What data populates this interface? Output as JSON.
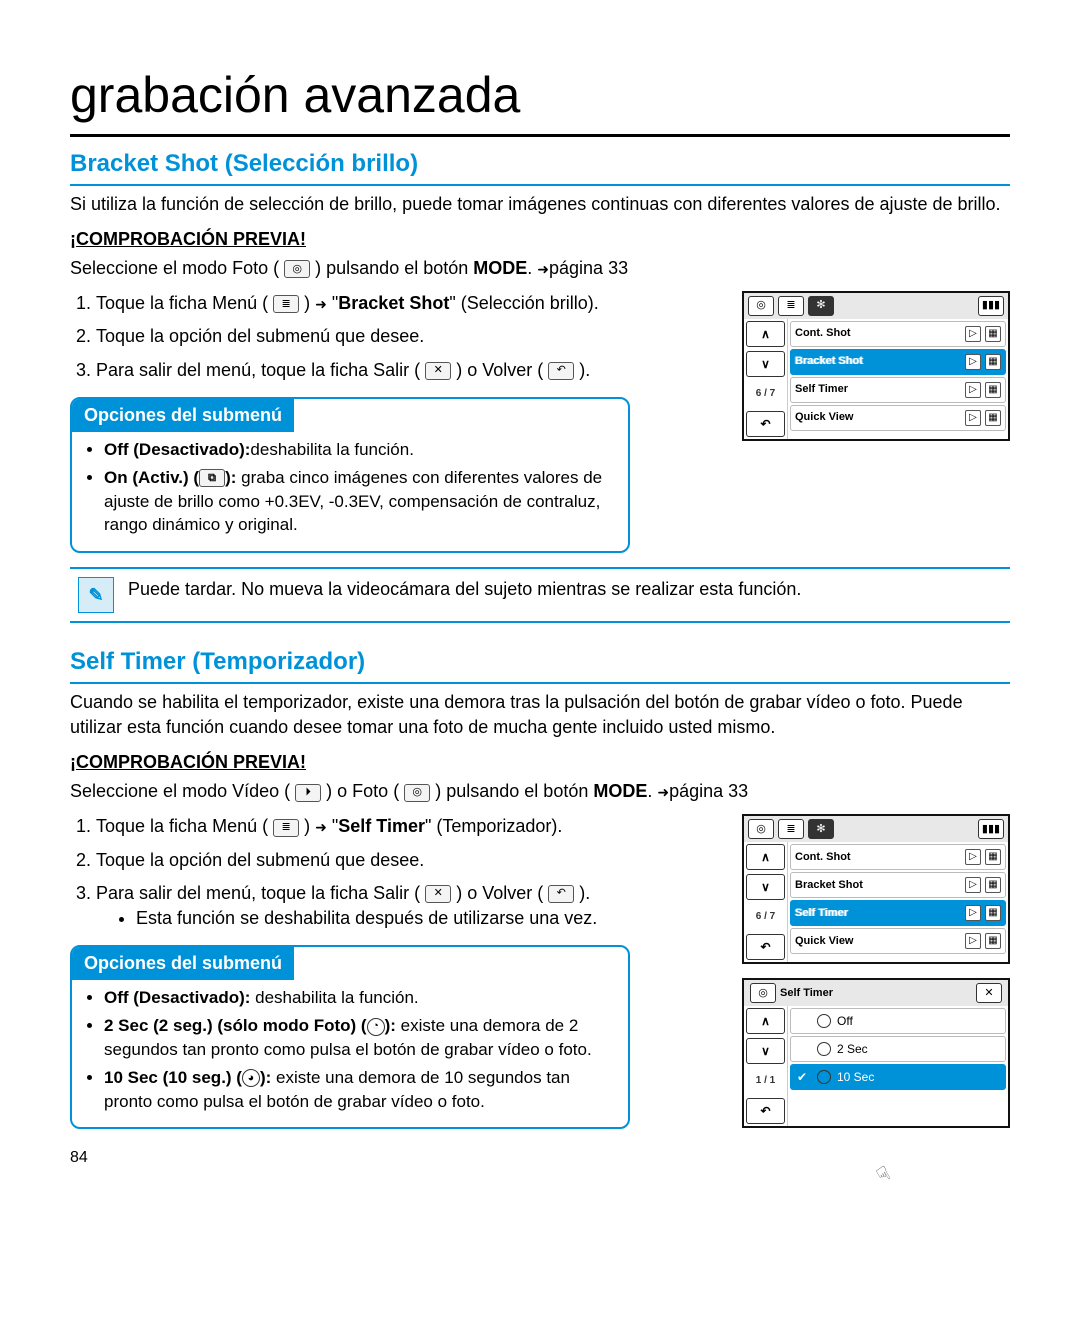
{
  "page": {
    "title": "grabación avanzada",
    "number": "84"
  },
  "section1": {
    "title": "Bracket Shot (Selección brillo)",
    "intro": "Si utiliza la función de selección de brillo, puede tomar imágenes continuas con diferentes valores de ajuste de brillo.",
    "precheck_label": "¡COMPROBACIÓN PREVIA!",
    "precheck_text_pre": "Seleccione el modo Foto (",
    "precheck_text_post": ") pulsando el botón ",
    "precheck_mode": "MODE",
    "precheck_page": "página 33",
    "step1_a": "Toque la ficha Menú (",
    "step1_b": ") ",
    "step1_c": "\"",
    "step1_bold": "Bracket Shot",
    "step1_d": "\" (Selección brillo).",
    "step2": "Toque la opción del submenú que desee.",
    "step3_a": "Para salir del menú, toque la ficha Salir (",
    "step3_b": ") o Volver (",
    "step3_c": ").",
    "submenu_title": "Opciones del submenú",
    "opt1_bold": "Off (Desactivado):",
    "opt1_text": "deshabilita la función.",
    "opt2_bold": "On (Activ.) (",
    "opt2_bold_end": "):",
    "opt2_text": " graba cinco imágenes con diferentes valores de ajuste de brillo como +0.3EV, -0.3EV, compensación de contraluz, rango dinámico y original.",
    "note": "Puede tardar. No mueva la videocámara del sujeto mientras se realizar esta función."
  },
  "section2": {
    "title": "Self Timer (Temporizador)",
    "intro": "Cuando se habilita el temporizador, existe una demora tras la pulsación del botón de grabar vídeo o foto. Puede utilizar esta función cuando desee tomar una foto de mucha gente incluido usted mismo.",
    "precheck_label": "¡COMPROBACIÓN PREVIA!",
    "precheck_text_pre": "Seleccione el modo Vídeo (",
    "precheck_text_mid": ") o Foto (",
    "precheck_text_post": ") pulsando el botón ",
    "precheck_mode": "MODE",
    "precheck_page": "página 33",
    "step1_a": "Toque la ficha Menú (",
    "step1_b": ") ",
    "step1_c": "\"",
    "step1_bold": "Self Timer",
    "step1_d": "\" (Temporizador).",
    "step2": "Toque la opción del submenú que desee.",
    "step3_a": "Para salir del menú, toque la ficha Salir (",
    "step3_b": ") o Volver (",
    "step3_c": ").",
    "step3_sub": "Esta función se deshabilita después de utilizarse una vez.",
    "submenu_title": "Opciones del submenú",
    "opt1_bold": "Off (Desactivado):",
    "opt1_text": " deshabilita la función.",
    "opt2_bold": "2 Sec (2 seg.) (sólo modo Foto) (",
    "opt2_bold_end": "):",
    "opt2_text": " existe una demora de 2 segundos tan pronto como pulsa el botón de grabar vídeo o foto.",
    "opt3_bold": "10 Sec (10 seg.) (",
    "opt3_bold_end": "):",
    "opt3_text": " existe una demora de 10 segundos tan pronto como pulsa el botón de grabar vídeo o foto."
  },
  "lcd1": {
    "page_indicator": "6 / 7",
    "items": [
      {
        "label": "Cont. Shot",
        "highlight": false
      },
      {
        "label": "Bracket Shot",
        "highlight": true
      },
      {
        "label": "Self Timer",
        "highlight": false
      },
      {
        "label": "Quick View",
        "highlight": false
      }
    ]
  },
  "lcd2": {
    "page_indicator": "6 / 7",
    "items": [
      {
        "label": "Cont. Shot",
        "highlight": false
      },
      {
        "label": "Bracket Shot",
        "highlight": false
      },
      {
        "label": "Self Timer",
        "highlight": true
      },
      {
        "label": "Quick View",
        "highlight": false
      }
    ]
  },
  "lcd3": {
    "title": "Self Timer",
    "page_indicator": "1 / 1",
    "options": [
      {
        "label": "Off",
        "selected": false
      },
      {
        "label": "2 Sec",
        "selected": false
      },
      {
        "label": "10 Sec",
        "selected": true
      }
    ]
  },
  "colors": {
    "accent": "#0092d8",
    "text": "#000000",
    "bg": "#ffffff"
  }
}
